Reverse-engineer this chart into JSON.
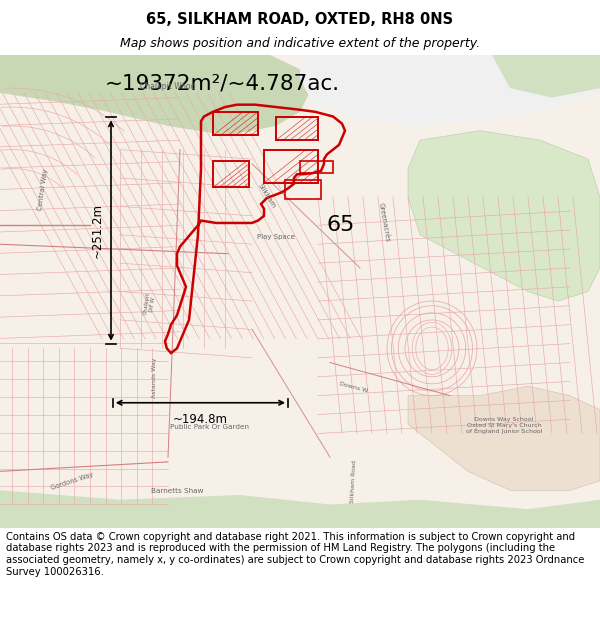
{
  "title_line1": "65, SILKHAM ROAD, OXTED, RH8 0NS",
  "title_line2": "Map shows position and indicative extent of the property.",
  "area_text": "~19372m²/~4.787ac.",
  "dim_vertical": "~251.2m",
  "dim_horizontal": "~194.8m",
  "label_65": "65",
  "footer_text": "Contains OS data © Crown copyright and database right 2021. This information is subject to Crown copyright and database rights 2023 and is reproduced with the permission of HM Land Registry. The polygons (including the associated geometry, namely x, y co-ordinates) are subject to Crown copyright and database rights 2023 Ordnance Survey 100026316.",
  "bg_color": "#ffffff",
  "map_bg": "#f7f0e8",
  "title_fontsize": 10.5,
  "subtitle_fontsize": 9,
  "footer_fontsize": 7.2,
  "street_color": "#e8aaaa",
  "street_lw": 0.45,
  "prop_color": "#cc0000",
  "prop_lw": 1.8,
  "arrow_color": "#000000",
  "label_color": "#666666",
  "green_colors": [
    "#d0e0c0",
    "#c8d8b8",
    "#dce8cc",
    "#e0ebd0"
  ],
  "white_area_color": "#f8f8f8"
}
